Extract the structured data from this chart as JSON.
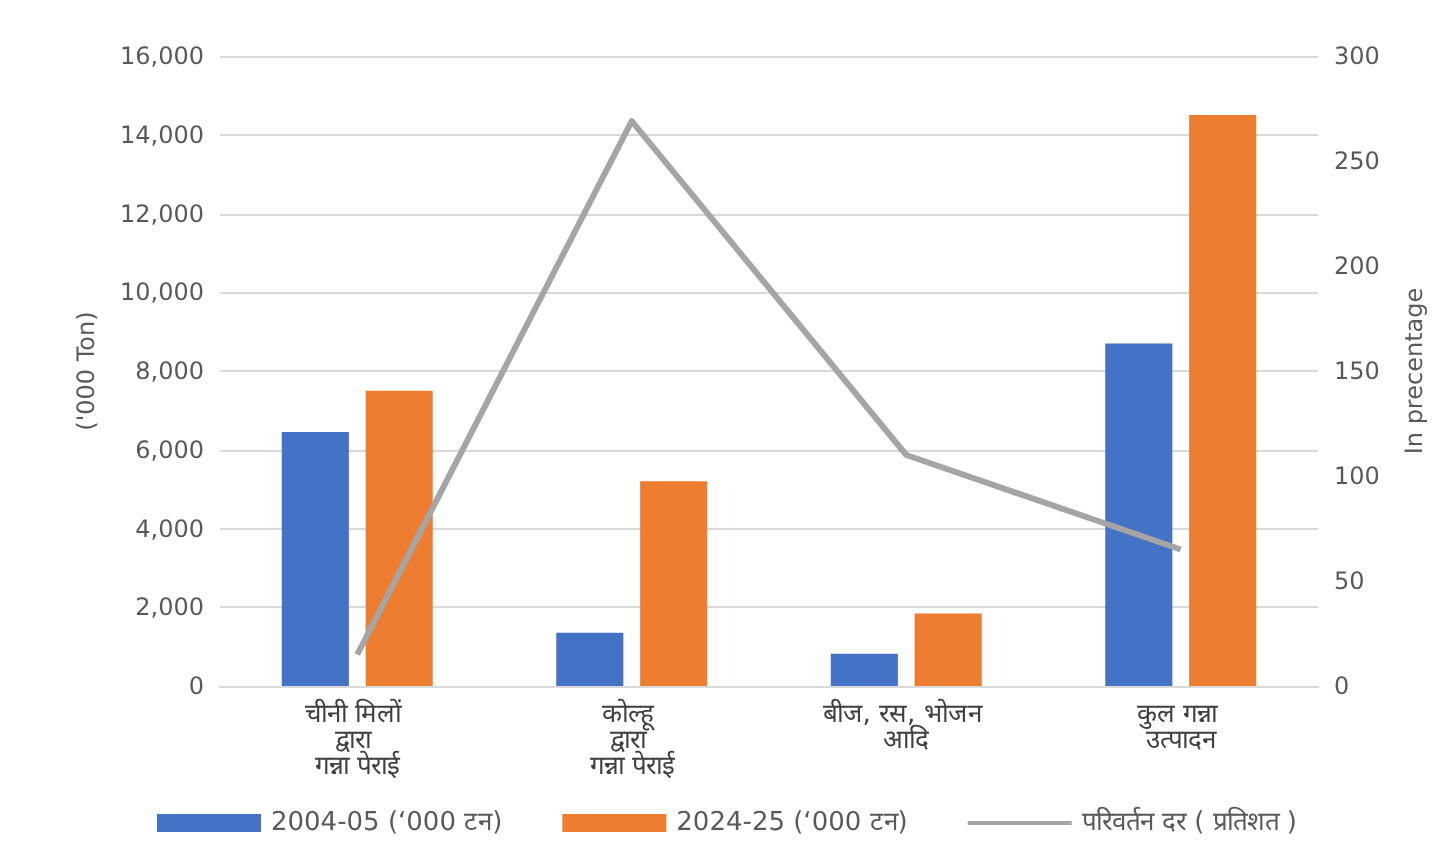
{
  "chart_data": {
    "type": "bar",
    "ylabel": "('000 Ton)",
    "y2label": "In precentage",
    "categories": [
      "चीनी मिलों द्वारा गन्ना पेराई",
      "कोल्हू द्वारा गन्ना पेराई",
      "बीज, रस, भोजन आदि",
      "कुल गन्ना उत्पादन"
    ],
    "series": [
      {
        "name": "2004-05 (‘000 टन)",
        "color": "#4472c4",
        "values": [
          6450,
          1350,
          820,
          8700
        ]
      },
      {
        "name": "2024-25 (‘000 टन)",
        "color": "#ed7d31",
        "values": [
          7500,
          5200,
          1840,
          14500
        ]
      },
      {
        "name": "परिवर्तन दर ( प्रतिशत )",
        "type": "line",
        "axis": "y2",
        "color": "#a5a5a5",
        "marker": "none",
        "values": [
          15,
          269,
          110,
          65
        ]
      }
    ],
    "ylim": [
      0,
      16000
    ],
    "yticks": [
      {
        "value": 0,
        "label": "0"
      },
      {
        "value": 2000,
        "label": "2,000"
      },
      {
        "value": 4000,
        "label": "4,000"
      },
      {
        "value": 6000,
        "label": "6,000"
      },
      {
        "value": 8000,
        "label": "8,000"
      },
      {
        "value": 10000,
        "label": "10,000"
      },
      {
        "value": 12000,
        "label": "12,000"
      },
      {
        "value": 14000,
        "label": "14,000"
      },
      {
        "value": 16000,
        "label": "16,000"
      }
    ],
    "y2lim": [
      0,
      300
    ],
    "y2ticks": [
      0,
      50,
      100,
      150,
      200,
      250,
      300
    ],
    "grid": "y",
    "legend": "bottom"
  }
}
